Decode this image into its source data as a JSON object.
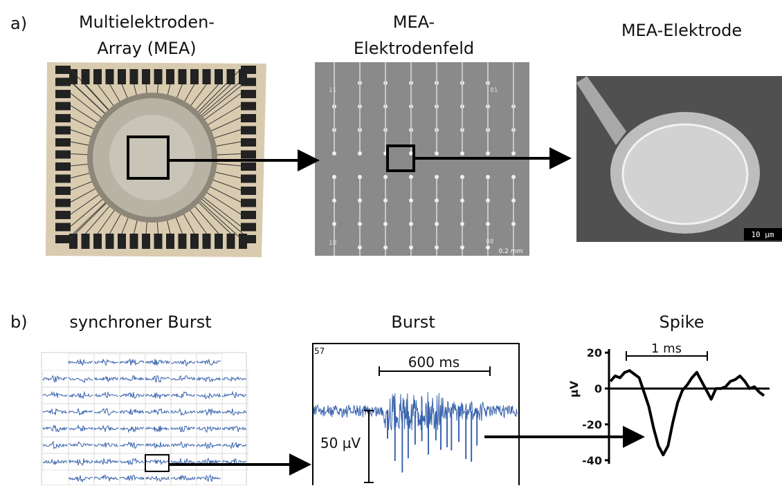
{
  "panel_a": {
    "label": "a)",
    "titles": [
      [
        "Multielektroden-",
        "Array (MEA)"
      ],
      [
        "MEA-",
        "Elektrodenfeld"
      ],
      [
        "MEA-Elektrode"
      ]
    ],
    "field_labels": [
      "11",
      "81",
      "18",
      "88"
    ],
    "field_scale": "0.2 mm",
    "sem_scale": "10   µm"
  },
  "panel_b": {
    "label": "b)",
    "titles": [
      "synchroner Burst",
      "Burst",
      "Spike"
    ],
    "burst": {
      "channel": "57",
      "time_scale": "600 ms",
      "amp_scale": "50 µV"
    },
    "chart_data": {
      "type": "line",
      "y_label": "µV",
      "scale_bar": "1 ms",
      "ylim": [
        -42,
        22
      ],
      "yticks": [
        20,
        0,
        -20,
        -40
      ],
      "color": "#000000",
      "values": [
        4,
        7,
        6,
        9,
        10,
        8,
        6,
        -2,
        -10,
        -22,
        -32,
        -37,
        -32,
        -19,
        -8,
        -1,
        2,
        6,
        9,
        4,
        -1,
        -6,
        0,
        0,
        1,
        4,
        5,
        7,
        4,
        0,
        1,
        -2,
        -4
      ]
    }
  }
}
